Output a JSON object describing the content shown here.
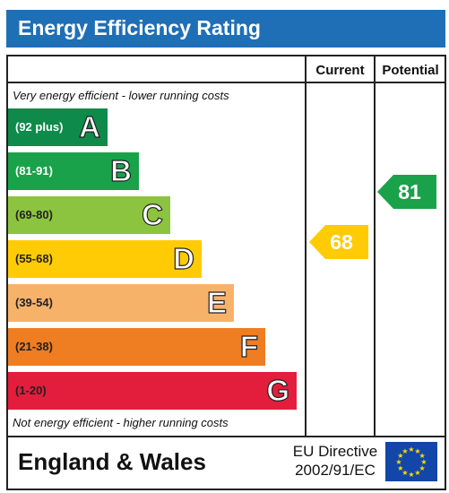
{
  "title": "Energy Efficiency Rating",
  "columns": {
    "current": "Current",
    "potential": "Potential"
  },
  "notes": {
    "top": "Very energy efficient - lower running costs",
    "bottom": "Not energy efficient - higher running costs"
  },
  "bands": [
    {
      "range": "(92 plus)",
      "letter": "A",
      "color": "#0e8a4a",
      "range_color": "#ffffff"
    },
    {
      "range": "(81-91)",
      "letter": "B",
      "color": "#1aa24a",
      "range_color": "#ffffff"
    },
    {
      "range": "(69-80)",
      "letter": "C",
      "color": "#8cc43f",
      "range_color": "#222222"
    },
    {
      "range": "(55-68)",
      "letter": "D",
      "color": "#ffcb05",
      "range_color": "#222222"
    },
    {
      "range": "(39-54)",
      "letter": "E",
      "color": "#f7b26a",
      "range_color": "#222222"
    },
    {
      "range": "(21-38)",
      "letter": "F",
      "color": "#ef7d22",
      "range_color": "#222222"
    },
    {
      "range": "(1-20)",
      "letter": "G",
      "color": "#e31d3c",
      "range_color": "#222222"
    }
  ],
  "current": {
    "value": "68",
    "color": "#ffcb05"
  },
  "potential": {
    "value": "81",
    "color": "#1aa24a"
  },
  "footer": {
    "region": "England & Wales",
    "directive_line1": "EU Directive",
    "directive_line2": "2002/91/EC"
  }
}
